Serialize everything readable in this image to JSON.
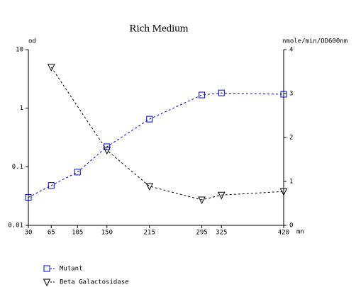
{
  "chart_data": {
    "type": "line",
    "title": "Rich Medium",
    "y_label": "od",
    "y2_label": "nmole/min/OD600nm",
    "x_label": "mn",
    "ylog": true,
    "x": [
      30,
      65,
      105,
      150,
      215,
      295,
      325,
      420
    ],
    "xlim": [
      30,
      420
    ],
    "xticks": [
      30,
      65,
      105,
      150,
      215,
      295,
      325,
      420
    ],
    "ylim": [
      0.01,
      10
    ],
    "yticks": [
      0.01,
      0.1,
      1,
      10
    ],
    "y2lim": [
      0,
      4
    ],
    "y2ticks": [
      0,
      1,
      2,
      3,
      4
    ],
    "series": [
      {
        "name": "Mutant",
        "color": "#0000cc",
        "marker": "square",
        "x": [
          30,
          65,
          105,
          150,
          215,
          295,
          325,
          420
        ],
        "values": [
          0.03,
          0.048,
          0.081,
          0.22,
          0.65,
          1.68,
          1.82,
          1.73
        ]
      },
      {
        "name": "Beta Galactosidase",
        "color": "#000000",
        "marker": "triangle-down",
        "axis": "y2",
        "x": [
          65,
          150,
          215,
          295,
          325,
          420
        ],
        "values": [
          3.6,
          1.71,
          0.89,
          0.58,
          0.69,
          0.77
        ]
      }
    ]
  }
}
